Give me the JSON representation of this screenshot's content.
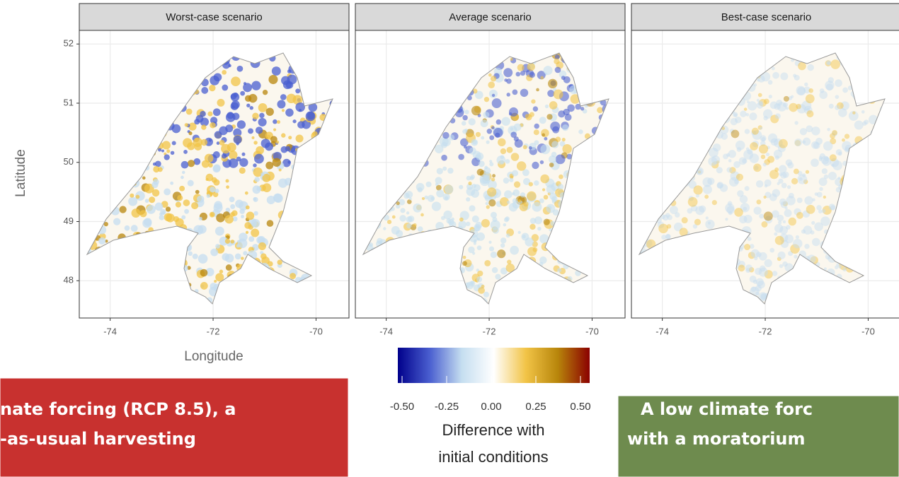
{
  "chart_data": {
    "type": "raster-map",
    "facets": [
      "Worst-case scenario",
      "Average scenario",
      "Best-case scenario"
    ],
    "xlabel": "Longitude",
    "ylabel": "Latitude",
    "xlim": [
      -74.6,
      -69.36
    ],
    "ylim": [
      47.37,
      52.23
    ],
    "xticks": [
      -74,
      -72,
      -70
    ],
    "yticks": [
      48,
      49,
      50,
      51,
      52
    ],
    "grid": true,
    "colorbar": {
      "title_lines": [
        "Difference with",
        "initial conditions"
      ],
      "lim": [
        -0.5,
        0.5
      ],
      "ticks": [
        {
          "value": -0.5,
          "label": "-0.50"
        },
        {
          "value": -0.25,
          "label": "-0.25"
        },
        {
          "value": 0,
          "label": "0.00"
        },
        {
          "value": 0.25,
          "label": "0.25"
        },
        {
          "value": 0.5,
          "label": "0.50"
        }
      ],
      "colors": [
        "#00008b",
        "#4a5fd0",
        "#c5def0",
        "#ffffff",
        "#f2c447",
        "#b8860b",
        "#8b0000"
      ]
    },
    "callouts": [
      {
        "lines": [
          "nate forcing (RCP 8.5), a",
          "-as-usual harvesting"
        ],
        "color": "#c8312f"
      },
      {
        "lines": [
          "A low climate forc",
          "with a moratorium"
        ],
        "color": "#6e8b4e"
      }
    ]
  }
}
